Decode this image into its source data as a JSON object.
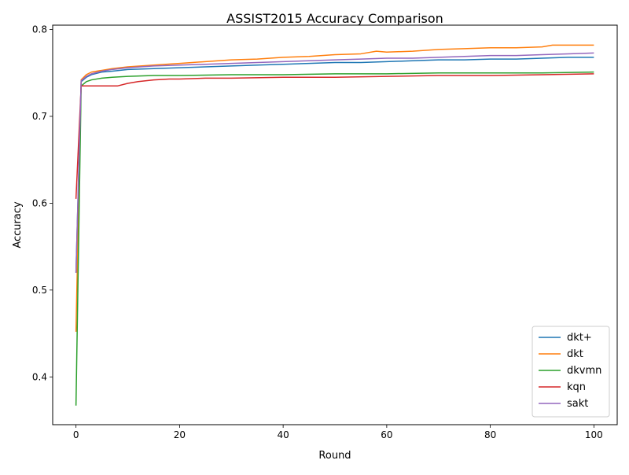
{
  "chart_data": {
    "type": "line",
    "title": "ASSIST2015 Accuracy Comparison",
    "xlabel": "Round",
    "ylabel": "Accuracy",
    "xlim": [
      -4.5,
      104.5
    ],
    "ylim": [
      0.345,
      0.805
    ],
    "xticks": [
      0,
      20,
      40,
      60,
      80,
      100
    ],
    "yticks": [
      0.4,
      0.5,
      0.6,
      0.7,
      0.8
    ],
    "grid": false,
    "legend_position": "lower-right",
    "series": [
      {
        "name": "dkt+",
        "color": "#1f77b4",
        "points": [
          [
            0,
            0.52
          ],
          [
            1,
            0.74
          ],
          [
            2,
            0.745
          ],
          [
            3,
            0.748
          ],
          [
            5,
            0.751
          ],
          [
            7,
            0.752
          ],
          [
            10,
            0.754
          ],
          [
            15,
            0.755
          ],
          [
            20,
            0.756
          ],
          [
            25,
            0.757
          ],
          [
            30,
            0.758
          ],
          [
            35,
            0.759
          ],
          [
            40,
            0.76
          ],
          [
            45,
            0.761
          ],
          [
            50,
            0.762
          ],
          [
            55,
            0.762
          ],
          [
            60,
            0.763
          ],
          [
            65,
            0.764
          ],
          [
            70,
            0.765
          ],
          [
            75,
            0.765
          ],
          [
            80,
            0.766
          ],
          [
            85,
            0.766
          ],
          [
            90,
            0.767
          ],
          [
            95,
            0.768
          ],
          [
            100,
            0.768
          ]
        ]
      },
      {
        "name": "dkt",
        "color": "#ff7f0e",
        "points": [
          [
            0,
            0.452
          ],
          [
            1,
            0.742
          ],
          [
            2,
            0.748
          ],
          [
            3,
            0.751
          ],
          [
            5,
            0.753
          ],
          [
            7,
            0.755
          ],
          [
            10,
            0.757
          ],
          [
            15,
            0.759
          ],
          [
            20,
            0.761
          ],
          [
            25,
            0.763
          ],
          [
            30,
            0.765
          ],
          [
            35,
            0.766
          ],
          [
            40,
            0.768
          ],
          [
            45,
            0.769
          ],
          [
            50,
            0.771
          ],
          [
            55,
            0.772
          ],
          [
            58,
            0.775
          ],
          [
            60,
            0.774
          ],
          [
            65,
            0.775
          ],
          [
            70,
            0.777
          ],
          [
            75,
            0.778
          ],
          [
            80,
            0.779
          ],
          [
            85,
            0.779
          ],
          [
            90,
            0.78
          ],
          [
            92,
            0.782
          ],
          [
            95,
            0.782
          ],
          [
            100,
            0.782
          ]
        ]
      },
      {
        "name": "dkvmn",
        "color": "#2ca02c",
        "points": [
          [
            0,
            0.367
          ],
          [
            1,
            0.735
          ],
          [
            2,
            0.74
          ],
          [
            3,
            0.742
          ],
          [
            5,
            0.744
          ],
          [
            7,
            0.745
          ],
          [
            10,
            0.746
          ],
          [
            15,
            0.747
          ],
          [
            20,
            0.747
          ],
          [
            30,
            0.748
          ],
          [
            40,
            0.748
          ],
          [
            50,
            0.749
          ],
          [
            60,
            0.749
          ],
          [
            70,
            0.75
          ],
          [
            80,
            0.75
          ],
          [
            90,
            0.75
          ],
          [
            100,
            0.751
          ]
        ]
      },
      {
        "name": "kqn",
        "color": "#d62728",
        "points": [
          [
            0,
            0.605
          ],
          [
            1,
            0.735
          ],
          [
            3,
            0.735
          ],
          [
            5,
            0.735
          ],
          [
            8,
            0.735
          ],
          [
            10,
            0.738
          ],
          [
            12,
            0.74
          ],
          [
            15,
            0.742
          ],
          [
            18,
            0.743
          ],
          [
            20,
            0.743
          ],
          [
            25,
            0.744
          ],
          [
            30,
            0.744
          ],
          [
            40,
            0.745
          ],
          [
            50,
            0.745
          ],
          [
            60,
            0.746
          ],
          [
            70,
            0.747
          ],
          [
            80,
            0.747
          ],
          [
            90,
            0.748
          ],
          [
            100,
            0.749
          ]
        ]
      },
      {
        "name": "sakt",
        "color": "#9467bd",
        "points": [
          [
            0,
            0.52
          ],
          [
            1,
            0.741
          ],
          [
            2,
            0.746
          ],
          [
            3,
            0.749
          ],
          [
            5,
            0.752
          ],
          [
            7,
            0.754
          ],
          [
            10,
            0.756
          ],
          [
            15,
            0.758
          ],
          [
            20,
            0.759
          ],
          [
            25,
            0.76
          ],
          [
            30,
            0.761
          ],
          [
            35,
            0.762
          ],
          [
            40,
            0.763
          ],
          [
            45,
            0.764
          ],
          [
            50,
            0.765
          ],
          [
            55,
            0.766
          ],
          [
            60,
            0.767
          ],
          [
            65,
            0.767
          ],
          [
            70,
            0.768
          ],
          [
            75,
            0.769
          ],
          [
            80,
            0.77
          ],
          [
            85,
            0.77
          ],
          [
            90,
            0.771
          ],
          [
            95,
            0.772
          ],
          [
            100,
            0.773
          ]
        ]
      }
    ]
  }
}
